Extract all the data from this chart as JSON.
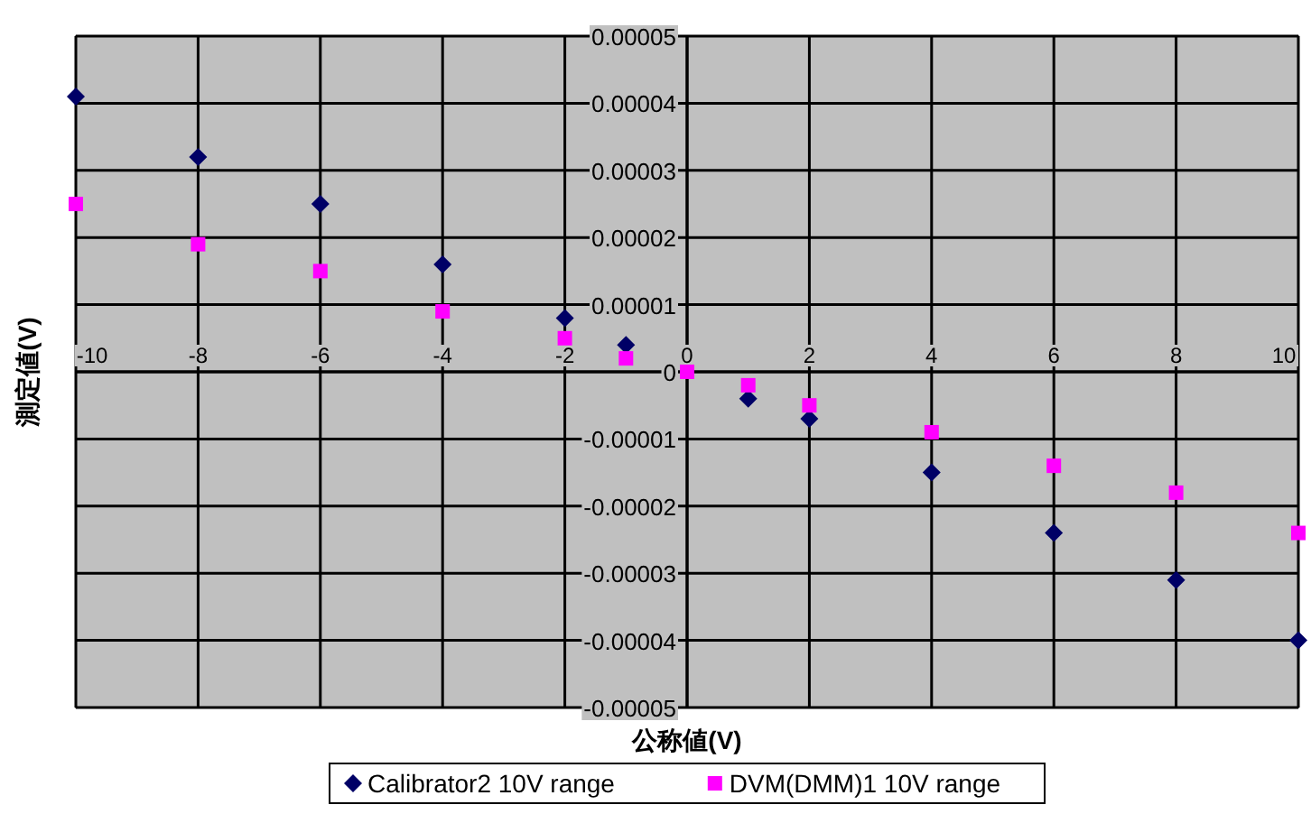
{
  "chart_data": {
    "type": "scatter",
    "xlabel": "公称値(V)",
    "ylabel": "測定値(V)",
    "x": [
      -10,
      -8,
      -6,
      -4,
      -2,
      -1,
      0,
      1,
      2,
      4,
      6,
      8,
      10
    ],
    "series": [
      {
        "name": "Calibrator2 10V range",
        "color": "#000066",
        "marker": "diamond",
        "values": [
          4.1e-05,
          3.2e-05,
          2.5e-05,
          1.6e-05,
          8e-06,
          4e-06,
          null,
          -4e-06,
          -7e-06,
          -1.5e-05,
          -2.4e-05,
          -3.1e-05,
          -4e-05
        ]
      },
      {
        "name": "DVM(DMM)1 10V range",
        "color": "#ff00ff",
        "marker": "square",
        "values": [
          2.5e-05,
          1.9e-05,
          1.5e-05,
          9e-06,
          5e-06,
          2e-06,
          0,
          -2e-06,
          -5e-06,
          -9e-06,
          -1.4e-05,
          -1.8e-05,
          -2.4e-05
        ]
      }
    ],
    "xlim": [
      -10,
      10
    ],
    "ylim": [
      -5e-05,
      5e-05
    ],
    "xticks": [
      -10,
      -8,
      -6,
      -4,
      -2,
      0,
      2,
      4,
      6,
      8,
      10
    ],
    "yticks": [
      {
        "value": -5e-05,
        "label": "-0.00005"
      },
      {
        "value": -4e-05,
        "label": "-0.00004"
      },
      {
        "value": -3e-05,
        "label": "-0.00003"
      },
      {
        "value": -2e-05,
        "label": "-0.00002"
      },
      {
        "value": -1e-05,
        "label": "-0.00001"
      },
      0,
      {
        "value": 1e-05,
        "label": "0.00001"
      },
      {
        "value": 2e-05,
        "label": "0.00002"
      },
      {
        "value": 3e-05,
        "label": "0.00003"
      },
      {
        "value": 4e-05,
        "label": "0.00004"
      },
      {
        "value": 5e-05,
        "label": "0.00005"
      }
    ],
    "grid": true,
    "legend": "bottom"
  }
}
